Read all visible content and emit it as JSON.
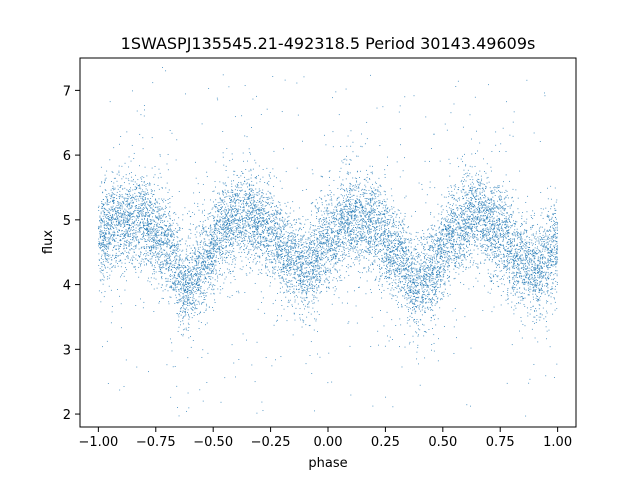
{
  "chart_data": {
    "type": "scatter",
    "title": "1SWASPJ135545.21-492318.5 Period 30143.49609s",
    "xlabel": "phase",
    "ylabel": "flux",
    "xlim": [
      -1.08,
      1.08
    ],
    "ylim": [
      1.8,
      7.5
    ],
    "xticks": [
      -1.0,
      -0.75,
      -0.5,
      -0.25,
      0.0,
      0.25,
      0.5,
      0.75,
      1.0
    ],
    "xtick_labels": [
      "−1.00",
      "−0.75",
      "−0.50",
      "−0.25",
      "0.00",
      "0.25",
      "0.50",
      "0.75",
      "1.00"
    ],
    "yticks": [
      2,
      3,
      4,
      5,
      6,
      7
    ],
    "ytick_labels": [
      "2",
      "3",
      "4",
      "5",
      "6",
      "7"
    ],
    "grid": false,
    "point_color": "#1f77b4",
    "trend": {
      "description_points_phase": [
        -1.0,
        -0.9,
        -0.8,
        -0.7,
        -0.62,
        -0.55,
        -0.45,
        -0.35,
        -0.25,
        -0.15,
        -0.1,
        0.0,
        0.1,
        0.2,
        0.3,
        0.38,
        0.45,
        0.55,
        0.65,
        0.75,
        0.85,
        0.9,
        1.0
      ],
      "mean_flux": [
        4.7,
        5.0,
        5.0,
        4.6,
        4.0,
        4.3,
        4.9,
        5.1,
        4.8,
        4.4,
        4.2,
        4.7,
        5.0,
        4.9,
        4.5,
        4.0,
        4.2,
        4.8,
        5.1,
        4.8,
        4.4,
        4.2,
        4.6
      ],
      "scatter_sd": 0.35,
      "outlier_range": [
        2.0,
        7.4
      ],
      "n_points": 12000
    }
  }
}
